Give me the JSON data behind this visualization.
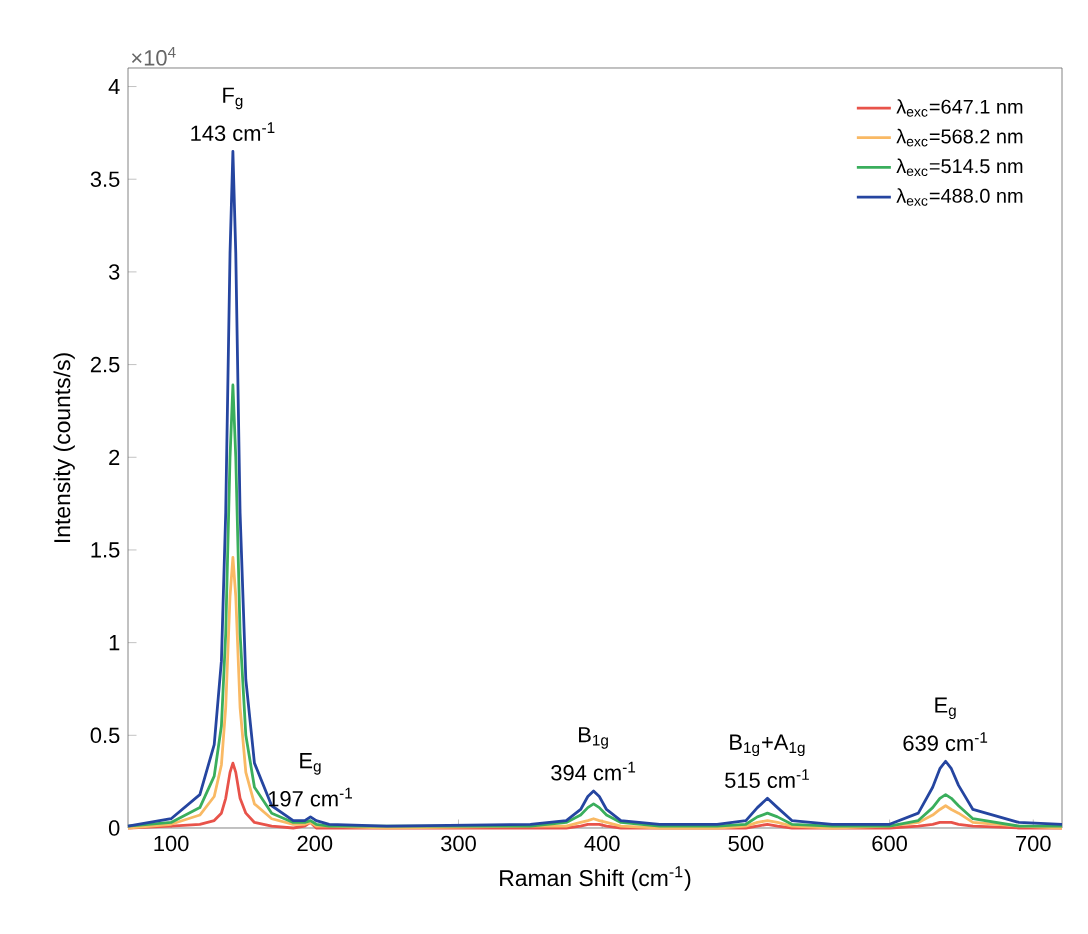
{
  "chart_data": {
    "type": "line",
    "xlabel": "Raman Shift (cm$^{-1}$)",
    "ylabel": "Intensity (counts/s)",
    "x": [
      70,
      100,
      120,
      130,
      135,
      138,
      141,
      143,
      145,
      148,
      152,
      158,
      170,
      185,
      193,
      197,
      201,
      210,
      250,
      350,
      375,
      385,
      390,
      394,
      398,
      403,
      413,
      440,
      480,
      500,
      508,
      515,
      522,
      532,
      560,
      600,
      620,
      630,
      635,
      639,
      643,
      648,
      658,
      690,
      720
    ],
    "series": [
      {
        "name": "λ$_{exc}$=647.1 nm",
        "color": "#e8534a",
        "values": [
          0,
          0.01,
          0.02,
          0.04,
          0.08,
          0.16,
          0.3,
          0.35,
          0.3,
          0.16,
          0.08,
          0.03,
          0.01,
          0,
          0.01,
          0.03,
          0,
          0,
          0,
          0,
          0,
          0.01,
          0.02,
          0.02,
          0.02,
          0.01,
          0,
          0,
          0,
          0,
          0.01,
          0.02,
          0.01,
          0,
          0,
          0,
          0.01,
          0.02,
          0.03,
          0.03,
          0.03,
          0.02,
          0.01,
          0,
          0
        ]
      },
      {
        "name": "λ$_{exc}$=568.2 nm",
        "color": "#f9b964",
        "values": [
          0,
          0.02,
          0.07,
          0.17,
          0.34,
          0.65,
          1.25,
          1.46,
          1.25,
          0.65,
          0.3,
          0.13,
          0.05,
          0.02,
          0.02,
          0.03,
          0.01,
          0.01,
          0,
          0.01,
          0.01,
          0.03,
          0.04,
          0.05,
          0.04,
          0.03,
          0.01,
          0,
          0,
          0.01,
          0.03,
          0.04,
          0.03,
          0.01,
          0,
          0.01,
          0.03,
          0.07,
          0.1,
          0.12,
          0.1,
          0.08,
          0.03,
          0.01,
          0
        ]
      },
      {
        "name": "λ$_{exc}$=514.5 nm",
        "color": "#3aae5c",
        "values": [
          0.01,
          0.03,
          0.11,
          0.28,
          0.55,
          1.05,
          2,
          2.39,
          2,
          1.05,
          0.5,
          0.22,
          0.08,
          0.03,
          0.03,
          0.04,
          0.02,
          0.01,
          0.01,
          0.01,
          0.03,
          0.07,
          0.11,
          0.13,
          0.11,
          0.07,
          0.03,
          0.01,
          0.01,
          0.02,
          0.06,
          0.08,
          0.06,
          0.02,
          0.01,
          0.01,
          0.04,
          0.11,
          0.16,
          0.18,
          0.16,
          0.12,
          0.05,
          0.01,
          0.01
        ]
      },
      {
        "name": "λ$_{exc}$=488.0 nm",
        "color": "#2545a0",
        "values": [
          0.01,
          0.05,
          0.18,
          0.45,
          0.9,
          1.7,
          3.1,
          3.65,
          3.1,
          1.7,
          0.8,
          0.35,
          0.12,
          0.04,
          0.04,
          0.06,
          0.04,
          0.02,
          0.01,
          0.02,
          0.04,
          0.1,
          0.17,
          0.2,
          0.17,
          0.1,
          0.04,
          0.02,
          0.02,
          0.04,
          0.11,
          0.16,
          0.11,
          0.04,
          0.02,
          0.02,
          0.08,
          0.22,
          0.32,
          0.36,
          0.32,
          0.23,
          0.1,
          0.03,
          0.02
        ]
      }
    ],
    "xlim": [
      70,
      720
    ],
    "ylim": [
      0,
      4.1
    ],
    "xticks": [
      100,
      200,
      300,
      400,
      500,
      600,
      700
    ],
    "yticks": [
      0,
      0.5,
      1,
      1.5,
      2,
      2.5,
      3,
      3.5,
      4
    ],
    "legend": "top right",
    "marker": "none",
    "line_style": "solid",
    "annotations": [
      "×10$^{4}$",
      {
        "text": "F$_{g}$",
        "x": 143,
        "y": 3.65
      },
      {
        "text": "143 cm$^{-1}$",
        "x": 143,
        "y": 3.65
      },
      {
        "text": "E$_{g}$",
        "x": 197,
        "y": 0.06
      },
      {
        "text": "197 cm$^{-1}$",
        "x": 197,
        "y": 0.06
      },
      {
        "text": "B$_{1g}$",
        "x": 394,
        "y": 0.2
      },
      {
        "text": "394 cm$^{-1}$",
        "x": 394,
        "y": 0.2
      },
      {
        "text": "B$_{1g}$+A$_{1g}$",
        "x": 515,
        "y": 0.16
      },
      {
        "text": "515 cm$^{-1}$",
        "x": 515,
        "y": 0.16
      },
      {
        "text": "E$_{g}$",
        "x": 639,
        "y": 0.36
      },
      {
        "text": "639 cm$^{-1}$",
        "x": 639,
        "y": 0.36
      }
    ]
  }
}
